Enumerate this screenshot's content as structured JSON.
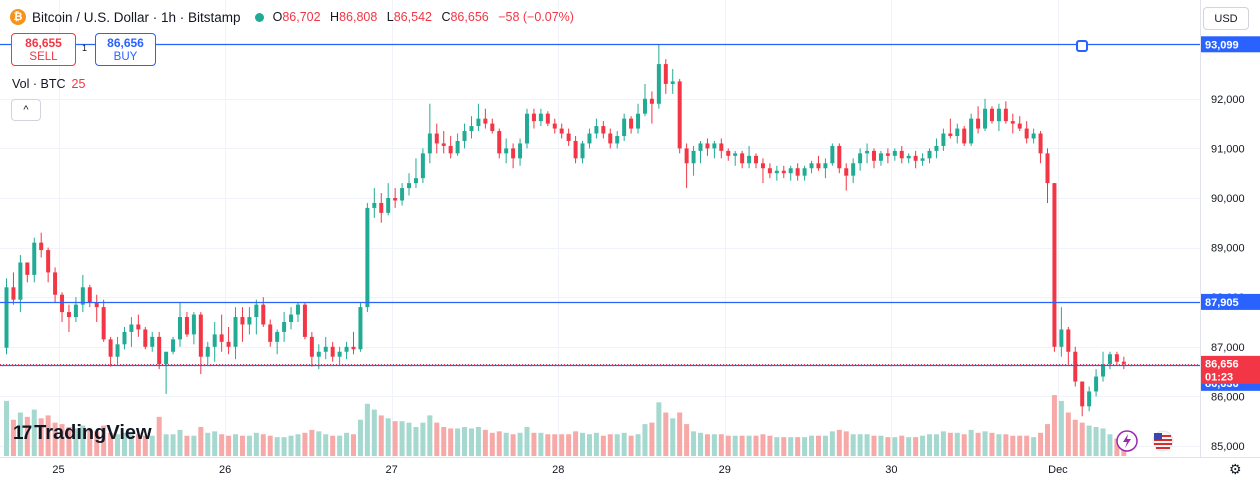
{
  "header": {
    "coin_glyph": "₿",
    "title": "Bitcoin / U.S. Dollar · 1h · Bitstamp",
    "ohlc": [
      {
        "k": "O",
        "v": "86,702"
      },
      {
        "k": "H",
        "v": "86,808"
      },
      {
        "k": "L",
        "v": "86,542"
      },
      {
        "k": "C",
        "v": "86,656"
      }
    ],
    "change": "−58 (−0.07%)"
  },
  "trade": {
    "sell_price": "86,655",
    "sell_label": "SELL",
    "spread": "1",
    "buy_price": "86,656",
    "buy_label": "BUY"
  },
  "volume_legend": {
    "label": "Vol · BTC",
    "value": "25"
  },
  "collapse_glyph": "^",
  "currency": "USD",
  "brand": {
    "mark": "17",
    "name": "TradingView"
  },
  "settings_glyph": "⚙",
  "colors": {
    "up": "#22ab94",
    "down": "#f23645",
    "line": "#2962ff",
    "up_volume": "#a5d8cf",
    "down_volume": "#f7a9a7"
  },
  "chart_data": {
    "type": "candlestick",
    "ylim": [
      84700,
      93800
    ],
    "yticks": [
      85000,
      86000,
      87000,
      88000,
      89000,
      90000,
      91000,
      92000
    ],
    "ytick_labels": [
      "85,000",
      "86,000",
      "87,000",
      "88,000",
      "89,000",
      "90,000",
      "91,000",
      "92,000"
    ],
    "xticks": [
      {
        "label": "25",
        "pos": 7.5
      },
      {
        "label": "26",
        "pos": 31.5
      },
      {
        "label": "27",
        "pos": 55.5
      },
      {
        "label": "28",
        "pos": 79.5
      },
      {
        "label": "29",
        "pos": 103.5
      },
      {
        "label": "30",
        "pos": 127.5
      },
      {
        "label": "Dec",
        "pos": 151.5
      }
    ],
    "horizontal_lines": [
      {
        "price": 93099,
        "label": "93,099"
      },
      {
        "price": 87905,
        "label": "87,905"
      },
      {
        "price": 86636,
        "label": "86,636"
      }
    ],
    "last_price": {
      "price": 86656,
      "label": "86,656",
      "countdown": "01:23"
    },
    "candles": [
      [
        86980,
        88380,
        86850,
        88200,
        380
      ],
      [
        88200,
        88500,
        87850,
        87950,
        250
      ],
      [
        87950,
        88850,
        87700,
        88700,
        300
      ],
      [
        88700,
        88700,
        88300,
        88450,
        270
      ],
      [
        88450,
        89200,
        88300,
        89100,
        320
      ],
      [
        89100,
        89300,
        88800,
        88950,
        260
      ],
      [
        88950,
        89000,
        88300,
        88500,
        280
      ],
      [
        88500,
        88600,
        87900,
        88050,
        230
      ],
      [
        88050,
        88100,
        87500,
        87700,
        220
      ],
      [
        87700,
        87850,
        87300,
        87600,
        200
      ],
      [
        87600,
        88000,
        87500,
        87850,
        190
      ],
      [
        87850,
        88450,
        87700,
        88200,
        210
      ],
      [
        88200,
        88250,
        87800,
        87900,
        180
      ],
      [
        87900,
        88050,
        87500,
        87800,
        170
      ],
      [
        87800,
        87950,
        87100,
        87150,
        210
      ],
      [
        87150,
        87200,
        86600,
        86800,
        160
      ],
      [
        86800,
        87200,
        86650,
        87050,
        150
      ],
      [
        87050,
        87400,
        86950,
        87300,
        160
      ],
      [
        87300,
        87600,
        87000,
        87450,
        150
      ],
      [
        87450,
        87650,
        87200,
        87350,
        150
      ],
      [
        87350,
        87400,
        86950,
        87000,
        140
      ],
      [
        87000,
        87300,
        86900,
        87200,
        140
      ],
      [
        87200,
        87300,
        86550,
        86650,
        270
      ],
      [
        86650,
        86900,
        86050,
        86900,
        150
      ],
      [
        86900,
        87200,
        86850,
        87150,
        150
      ],
      [
        87150,
        87900,
        87000,
        87600,
        180
      ],
      [
        87600,
        87700,
        87200,
        87250,
        140
      ],
      [
        87250,
        87700,
        87050,
        87650,
        140
      ],
      [
        87650,
        87700,
        86450,
        86800,
        200
      ],
      [
        86800,
        87100,
        86650,
        87000,
        160
      ],
      [
        87000,
        87500,
        86700,
        87250,
        170
      ],
      [
        87250,
        87650,
        86900,
        87100,
        150
      ],
      [
        87100,
        87400,
        86850,
        87000,
        140
      ],
      [
        87000,
        87800,
        86750,
        87600,
        150
      ],
      [
        87600,
        87800,
        87100,
        87450,
        140
      ],
      [
        87450,
        87800,
        87250,
        87600,
        140
      ],
      [
        87600,
        87950,
        87250,
        87850,
        160
      ],
      [
        87850,
        88000,
        87400,
        87450,
        150
      ],
      [
        87450,
        87550,
        87000,
        87100,
        140
      ],
      [
        87100,
        87350,
        86850,
        87300,
        130
      ],
      [
        87300,
        87700,
        87100,
        87500,
        130
      ],
      [
        87500,
        87800,
        87350,
        87650,
        140
      ],
      [
        87650,
        87900,
        87500,
        87850,
        150
      ],
      [
        87850,
        87900,
        87150,
        87200,
        160
      ],
      [
        87200,
        87300,
        86600,
        86800,
        180
      ],
      [
        86800,
        87050,
        86550,
        86900,
        170
      ],
      [
        86900,
        87200,
        86750,
        87000,
        150
      ],
      [
        87000,
        87100,
        86700,
        86800,
        140
      ],
      [
        86800,
        87000,
        86650,
        86900,
        140
      ],
      [
        86900,
        87100,
        86750,
        87000,
        160
      ],
      [
        87000,
        87300,
        86850,
        86950,
        150
      ],
      [
        86950,
        87900,
        86900,
        87800,
        250
      ],
      [
        87800,
        89900,
        87700,
        89800,
        360
      ],
      [
        89800,
        90200,
        89600,
        89900,
        320
      ],
      [
        89900,
        90100,
        89500,
        89700,
        280
      ],
      [
        89700,
        90300,
        89650,
        90000,
        260
      ],
      [
        90000,
        90200,
        89800,
        89950,
        240
      ],
      [
        89950,
        90300,
        89850,
        90200,
        240
      ],
      [
        90200,
        90500,
        90050,
        90300,
        230
      ],
      [
        90300,
        90800,
        90200,
        90400,
        200
      ],
      [
        90400,
        91000,
        90300,
        90900,
        230
      ],
      [
        90900,
        91900,
        90700,
        91300,
        280
      ],
      [
        91300,
        91500,
        90900,
        91100,
        230
      ],
      [
        91100,
        91350,
        90900,
        91050,
        200
      ],
      [
        91050,
        91250,
        90800,
        90900,
        190
      ],
      [
        90900,
        91300,
        90850,
        91150,
        190
      ],
      [
        91150,
        91500,
        91000,
        91350,
        200
      ],
      [
        91350,
        91650,
        91200,
        91450,
        190
      ],
      [
        91450,
        91900,
        91350,
        91600,
        200
      ],
      [
        91600,
        91800,
        91400,
        91500,
        180
      ],
      [
        91500,
        91600,
        91300,
        91350,
        160
      ],
      [
        91350,
        91400,
        90800,
        90900,
        170
      ],
      [
        90900,
        91200,
        90700,
        91000,
        160
      ],
      [
        91000,
        91100,
        90600,
        90800,
        150
      ],
      [
        90800,
        91200,
        90650,
        91100,
        160
      ],
      [
        91100,
        91800,
        91000,
        91700,
        200
      ],
      [
        91700,
        91800,
        91400,
        91550,
        160
      ],
      [
        91550,
        91800,
        91450,
        91700,
        160
      ],
      [
        91700,
        91750,
        91450,
        91500,
        150
      ],
      [
        91500,
        91600,
        91300,
        91400,
        150
      ],
      [
        91400,
        91500,
        91200,
        91300,
        150
      ],
      [
        91300,
        91400,
        91050,
        91150,
        150
      ],
      [
        91150,
        91250,
        90700,
        90800,
        170
      ],
      [
        90800,
        91150,
        90700,
        91100,
        160
      ],
      [
        91100,
        91400,
        91000,
        91300,
        150
      ],
      [
        91300,
        91600,
        91200,
        91450,
        160
      ],
      [
        91450,
        91550,
        91200,
        91300,
        140
      ],
      [
        91300,
        91400,
        91000,
        91100,
        150
      ],
      [
        91100,
        91350,
        91000,
        91250,
        150
      ],
      [
        91250,
        91700,
        91150,
        91600,
        160
      ],
      [
        91600,
        91650,
        91300,
        91400,
        140
      ],
      [
        91400,
        91900,
        91300,
        91700,
        150
      ],
      [
        91700,
        92300,
        91650,
        92000,
        220
      ],
      [
        92000,
        92150,
        91500,
        91900,
        230
      ],
      [
        91900,
        93100,
        91800,
        92700,
        370
      ],
      [
        92700,
        92800,
        92100,
        92300,
        300
      ],
      [
        92300,
        92600,
        92100,
        92350,
        260
      ],
      [
        92350,
        92400,
        90900,
        91000,
        300
      ],
      [
        91000,
        91100,
        90200,
        90700,
        220
      ],
      [
        90700,
        91050,
        90450,
        90950,
        170
      ],
      [
        90950,
        91150,
        90700,
        91100,
        160
      ],
      [
        91100,
        91200,
        90850,
        91000,
        150
      ],
      [
        91000,
        91150,
        90800,
        91100,
        150
      ],
      [
        91100,
        91200,
        90800,
        90950,
        150
      ],
      [
        90950,
        91000,
        90750,
        90850,
        140
      ],
      [
        90850,
        90950,
        90650,
        90900,
        140
      ],
      [
        90900,
        90950,
        90600,
        90700,
        140
      ],
      [
        90700,
        91050,
        90600,
        90850,
        140
      ],
      [
        90850,
        90900,
        90600,
        90700,
        140
      ],
      [
        90700,
        90800,
        90300,
        90600,
        150
      ],
      [
        90600,
        90700,
        90400,
        90500,
        140
      ],
      [
        90500,
        90650,
        90350,
        90550,
        130
      ],
      [
        90550,
        90650,
        90400,
        90500,
        130
      ],
      [
        90500,
        90650,
        90350,
        90600,
        130
      ],
      [
        90600,
        90700,
        90350,
        90450,
        130
      ],
      [
        90450,
        90650,
        90350,
        90600,
        130
      ],
      [
        90600,
        90750,
        90500,
        90700,
        140
      ],
      [
        90700,
        90850,
        90550,
        90600,
        140
      ],
      [
        90600,
        90800,
        90400,
        90700,
        140
      ],
      [
        90700,
        91100,
        90650,
        91050,
        170
      ],
      [
        91050,
        91100,
        90500,
        90600,
        180
      ],
      [
        90600,
        90700,
        90150,
        90450,
        170
      ],
      [
        90450,
        90800,
        90300,
        90700,
        150
      ],
      [
        90700,
        91000,
        90550,
        90900,
        150
      ],
      [
        90900,
        91100,
        90700,
        90950,
        150
      ],
      [
        90950,
        91000,
        90600,
        90750,
        140
      ],
      [
        90750,
        90950,
        90650,
        90900,
        140
      ],
      [
        90900,
        91000,
        90700,
        90850,
        130
      ],
      [
        90850,
        91000,
        90750,
        90950,
        130
      ],
      [
        90950,
        91050,
        90700,
        90800,
        140
      ],
      [
        90800,
        90900,
        90700,
        90850,
        130
      ],
      [
        90850,
        90950,
        90600,
        90750,
        130
      ],
      [
        90750,
        90900,
        90650,
        90800,
        140
      ],
      [
        90800,
        91000,
        90700,
        90950,
        150
      ],
      [
        90950,
        91200,
        90800,
        91050,
        150
      ],
      [
        91050,
        91400,
        90950,
        91300,
        170
      ],
      [
        91300,
        91600,
        91200,
        91250,
        160
      ],
      [
        91250,
        91500,
        91100,
        91400,
        160
      ],
      [
        91400,
        91450,
        91050,
        91100,
        150
      ],
      [
        91100,
        91700,
        91050,
        91600,
        180
      ],
      [
        91600,
        91850,
        91300,
        91400,
        160
      ],
      [
        91400,
        92000,
        91350,
        91800,
        170
      ],
      [
        91800,
        91850,
        91500,
        91550,
        160
      ],
      [
        91550,
        91900,
        91350,
        91800,
        150
      ],
      [
        91800,
        91950,
        91500,
        91550,
        150
      ],
      [
        91550,
        91700,
        91300,
        91500,
        140
      ],
      [
        91500,
        91650,
        91350,
        91400,
        140
      ],
      [
        91400,
        91550,
        91100,
        91200,
        140
      ],
      [
        91200,
        91400,
        91100,
        91300,
        130
      ],
      [
        91300,
        91350,
        90700,
        90900,
        160
      ],
      [
        90900,
        91000,
        89900,
        90300,
        220
      ],
      [
        90300,
        90300,
        86900,
        87000,
        420
      ],
      [
        87000,
        87800,
        86800,
        87350,
        380
      ],
      [
        87350,
        87400,
        86650,
        86900,
        300
      ],
      [
        86900,
        87000,
        86200,
        86300,
        250
      ],
      [
        86300,
        86300,
        85600,
        85800,
        230
      ],
      [
        85800,
        86200,
        85700,
        86100,
        210
      ],
      [
        86100,
        86550,
        86000,
        86400,
        200
      ],
      [
        86400,
        86900,
        86300,
        86650,
        190
      ],
      [
        86650,
        86900,
        86550,
        86850,
        150
      ],
      [
        86850,
        86900,
        86650,
        86700,
        120
      ],
      [
        86700,
        86800,
        86550,
        86656,
        110
      ]
    ]
  }
}
